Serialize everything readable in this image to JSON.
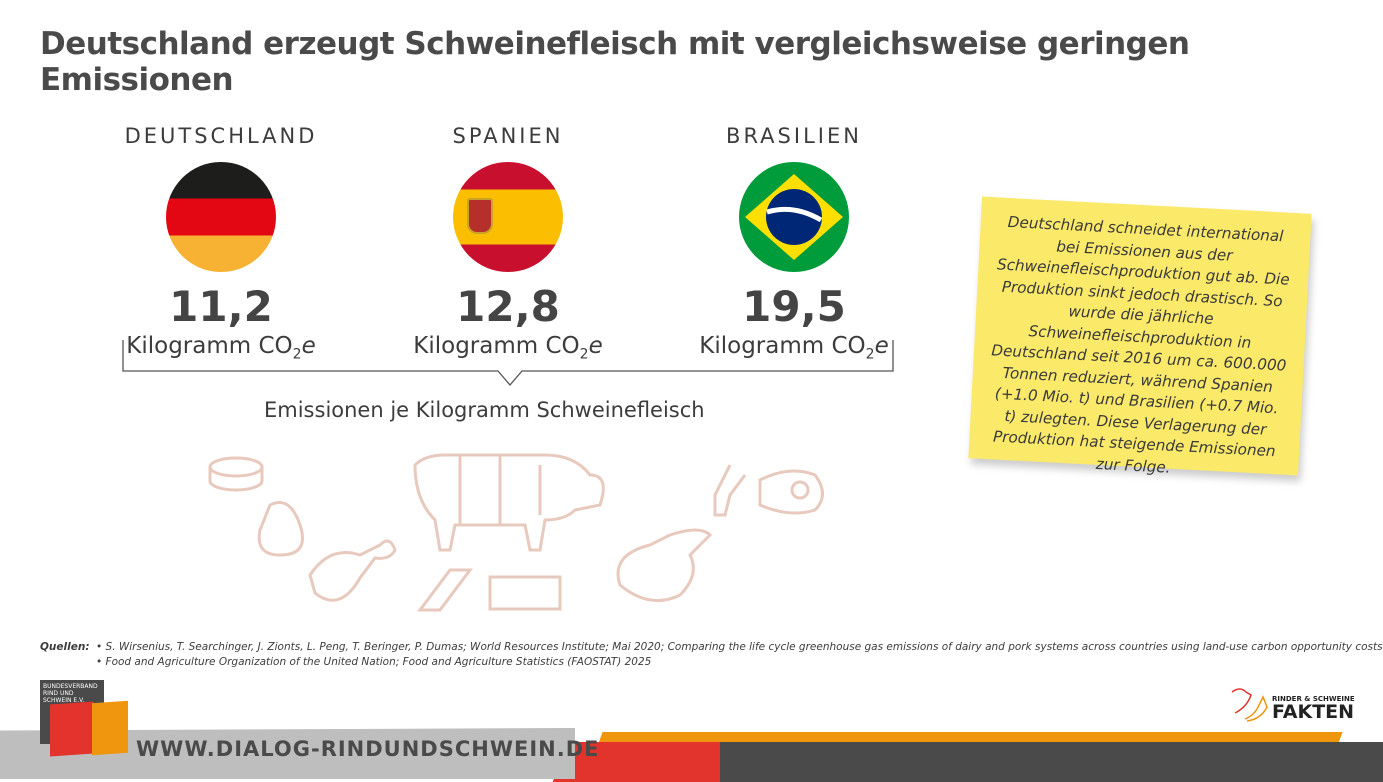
{
  "title": "Deutschland erzeugt Schweinefleisch mit vergleichsweise geringen Emissionen",
  "countries": [
    {
      "name": "DEUTSCHLAND",
      "value": "11,2",
      "unit": "Kilogramm CO",
      "sub": "2",
      "e": "e"
    },
    {
      "name": "SPANIEN",
      "value": "12,8",
      "unit": "Kilogramm CO",
      "sub": "2",
      "e": "e"
    },
    {
      "name": "BRASILIEN",
      "value": "19,5",
      "unit": "Kilogramm CO",
      "sub": "2",
      "e": "e"
    }
  ],
  "caption": "Emissionen je Kilogramm Schweinefleisch",
  "note": "Deutschland schneidet international bei Emissionen aus der Schweinefleischproduktion gut ab. Die Produktion sinkt jedoch drastisch. So wurde die jährliche Schweinefleischproduktion in Deutschland seit 2016 um ca. 600.000 Tonnen reduziert, während Spanien (+1.0 Mio. t) und Brasilien (+0.7 Mio. t) zulegten. Diese Verlagerung der Produktion hat steigende Emissionen zur Folge.",
  "sources": {
    "label": "Quellen:",
    "items": [
      "• S. Wirsenius, T. Searchinger, J. Zionts, L. Peng, T.  Beringer, P. Dumas; World Resources Institute; Mai 2020; Comparing the life cycle greenhouse gas emissions of dairy and pork systems across countries using land-use carbon opportunity costs",
      "• Food and Agriculture Organization of the United Nation; Food and Agriculture Statistics (FAOSTAT) 2025"
    ]
  },
  "footer": {
    "url": "WWW.DIALOG-RINDUNDSCHWEIN.DE",
    "logo_text1": "BUNDESVERBAND",
    "logo_text2": "RIND UND SCHWEIN E.V.",
    "fakten_small": "RINDER & SCHWEINE",
    "fakten_big": "FAKTEN"
  }
}
